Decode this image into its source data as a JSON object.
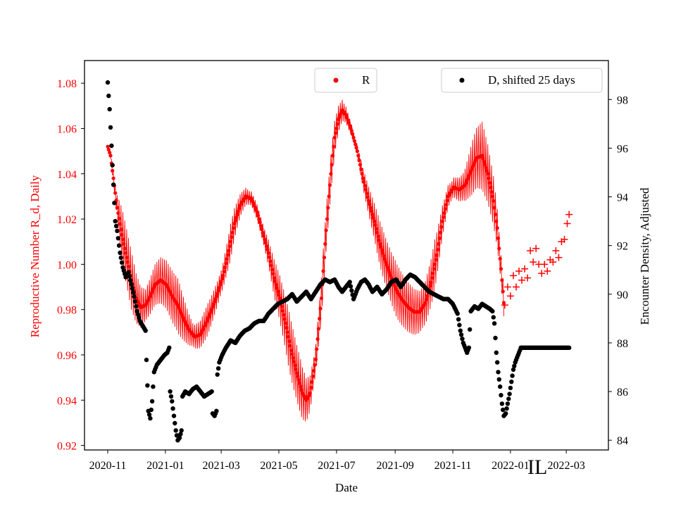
{
  "colors": {
    "r_series": "#ff0000",
    "d_series": "#000000",
    "axes": "#000000"
  },
  "chart_data": {
    "type": "scatter",
    "title": "",
    "xlabel": "Date",
    "ylabel_left": "Reproductive Number R_d, Daily",
    "ylabel_right": "Encounter Density, Adjusted",
    "x_ticks": [
      "2020-11",
      "2021-01",
      "2021-03",
      "2021-05",
      "2021-07",
      "2021-09",
      "2021-11",
      "2022-01",
      "2022-03"
    ],
    "ylim_left": [
      0.918,
      1.09
    ],
    "ylim_right": [
      83.6,
      99.6
    ],
    "left_ticks": [
      "0.92",
      "0.94",
      "0.96",
      "0.98",
      "1.00",
      "1.02",
      "1.04",
      "1.06",
      "1.08"
    ],
    "right_ticks": [
      "84",
      "86",
      "88",
      "90",
      "92",
      "94",
      "96",
      "98"
    ],
    "annotation": "IL",
    "legend": {
      "r_label": "R",
      "d_label": "D, shifted 25 days"
    },
    "series": [
      {
        "name": "R",
        "axis": "left",
        "marker": "dot",
        "center": [
          [
            0,
            1.052
          ],
          [
            3,
            1.048
          ],
          [
            6,
            1.038
          ],
          [
            10,
            1.025
          ],
          [
            15,
            1.013
          ],
          [
            20,
            1.003
          ],
          [
            25,
            0.993
          ],
          [
            30,
            0.985
          ],
          [
            35,
            0.981
          ],
          [
            40,
            0.982
          ],
          [
            45,
            0.986
          ],
          [
            50,
            0.991
          ],
          [
            56,
            0.993
          ],
          [
            62,
            0.991
          ],
          [
            68,
            0.986
          ],
          [
            74,
            0.982
          ],
          [
            80,
            0.976
          ],
          [
            86,
            0.971
          ],
          [
            92,
            0.968
          ],
          [
            98,
            0.969
          ],
          [
            104,
            0.974
          ],
          [
            110,
            0.98
          ],
          [
            116,
            0.987
          ],
          [
            122,
            0.995
          ],
          [
            128,
            1.006
          ],
          [
            134,
            1.018
          ],
          [
            140,
            1.026
          ],
          [
            146,
            1.03
          ],
          [
            152,
            1.029
          ],
          [
            158,
            1.023
          ],
          [
            164,
            1.014
          ],
          [
            170,
            1.005
          ],
          [
            176,
            0.994
          ],
          [
            182,
            0.985
          ],
          [
            188,
            0.974
          ],
          [
            194,
            0.962
          ],
          [
            200,
            0.952
          ],
          [
            206,
            0.943
          ],
          [
            210,
            0.94
          ],
          [
            214,
            0.943
          ],
          [
            220,
            0.958
          ],
          [
            226,
            0.985
          ],
          [
            231,
            1.015
          ],
          [
            236,
            1.04
          ],
          [
            240,
            1.056
          ],
          [
            244,
            1.064
          ],
          [
            248,
            1.068
          ],
          [
            252,
            1.066
          ],
          [
            258,
            1.059
          ],
          [
            264,
            1.05
          ],
          [
            270,
            1.038
          ],
          [
            276,
            1.028
          ],
          [
            282,
            1.019
          ],
          [
            288,
            1.009
          ],
          [
            294,
            1.001
          ],
          [
            300,
            0.994
          ],
          [
            306,
            0.988
          ],
          [
            312,
            0.984
          ],
          [
            318,
            0.981
          ],
          [
            324,
            0.979
          ],
          [
            330,
            0.979
          ],
          [
            336,
            0.983
          ],
          [
            342,
            0.992
          ],
          [
            348,
            1.004
          ],
          [
            354,
            1.019
          ],
          [
            360,
            1.03
          ],
          [
            366,
            1.034
          ],
          [
            372,
            1.033
          ],
          [
            378,
            1.035
          ],
          [
            384,
            1.041
          ],
          [
            390,
            1.047
          ],
          [
            396,
            1.048
          ],
          [
            402,
            1.04
          ],
          [
            408,
            1.028
          ],
          [
            412,
            1.016
          ],
          [
            416,
            0.998
          ],
          [
            419,
            0.983
          ]
        ],
        "amplitude": [
          [
            0,
            0.0
          ],
          [
            8,
            0.003
          ],
          [
            15,
            0.012
          ],
          [
            25,
            0.013
          ],
          [
            40,
            0.007
          ],
          [
            55,
            0.01
          ],
          [
            75,
            0.012
          ],
          [
            90,
            0.005
          ],
          [
            105,
            0.007
          ],
          [
            120,
            0.005
          ],
          [
            130,
            0.008
          ],
          [
            140,
            0.005
          ],
          [
            150,
            0.003
          ],
          [
            165,
            0.004
          ],
          [
            178,
            0.009
          ],
          [
            192,
            0.013
          ],
          [
            205,
            0.012
          ],
          [
            218,
            0.006
          ],
          [
            228,
            0.01
          ],
          [
            238,
            0.008
          ],
          [
            250,
            0.004
          ],
          [
            262,
            0.002
          ],
          [
            275,
            0.006
          ],
          [
            288,
            0.01
          ],
          [
            305,
            0.012
          ],
          [
            318,
            0.011
          ],
          [
            332,
            0.009
          ],
          [
            346,
            0.011
          ],
          [
            356,
            0.006
          ],
          [
            364,
            0.004
          ],
          [
            376,
            0.006
          ],
          [
            386,
            0.012
          ],
          [
            396,
            0.015
          ],
          [
            408,
            0.011
          ],
          [
            416,
            0.006
          ],
          [
            419,
            0.006
          ]
        ],
        "plus_points": [
          [
            420,
            0.982
          ],
          [
            423,
            0.99
          ],
          [
            426,
            0.986
          ],
          [
            429,
            0.995
          ],
          [
            432,
            0.99
          ],
          [
            435,
            0.997
          ],
          [
            438,
            0.993
          ],
          [
            441,
            0.998
          ],
          [
            444,
            0.994
          ],
          [
            447,
            1.006
          ],
          [
            450,
            1.001
          ],
          [
            453,
            1.007
          ],
          [
            456,
            1.0
          ],
          [
            459,
            0.996
          ],
          [
            462,
            1.0
          ],
          [
            465,
            0.997
          ],
          [
            468,
            1.002
          ],
          [
            471,
            1.001
          ],
          [
            474,
            1.006
          ],
          [
            477,
            1.003
          ],
          [
            480,
            1.01
          ],
          [
            483,
            1.011
          ],
          [
            486,
            1.018
          ],
          [
            488,
            1.022
          ]
        ]
      },
      {
        "name": "D, shifted 25 days",
        "axis": "right",
        "marker": "dot",
        "segments": [
          [
            [
              0,
              98.7
            ],
            [
              2,
              97.6
            ],
            [
              4,
              96.1
            ],
            [
              6,
              94.5
            ],
            [
              8,
              93.0
            ],
            [
              10,
              92.6
            ],
            [
              13,
              91.7
            ],
            [
              16,
              91.1
            ],
            [
              19,
              90.7
            ],
            [
              22,
              90.9
            ],
            [
              25,
              90.4
            ],
            [
              28,
              89.9
            ],
            [
              31,
              89.3
            ],
            [
              34,
              88.9
            ],
            [
              37,
              88.7
            ],
            [
              40,
              88.5
            ]
          ],
          [
            [
              41,
              87.3
            ],
            [
              43,
              85.2
            ],
            [
              45,
              84.9
            ],
            [
              47,
              85.6
            ],
            [
              49,
              86.8
            ],
            [
              52,
              87.1
            ],
            [
              56,
              87.3
            ],
            [
              60,
              87.5
            ],
            [
              63,
              87.6
            ],
            [
              65,
              87.8
            ]
          ],
          [
            [
              66,
              86.0
            ],
            [
              68,
              85.6
            ],
            [
              70,
              85.0
            ],
            [
              72,
              84.4
            ],
            [
              74,
              84.0
            ],
            [
              76,
              84.1
            ],
            [
              78,
              84.4
            ]
          ],
          [
            [
              79,
              85.8
            ],
            [
              82,
              86.0
            ],
            [
              86,
              85.9
            ],
            [
              90,
              86.1
            ],
            [
              94,
              86.2
            ],
            [
              98,
              86.0
            ],
            [
              102,
              85.8
            ],
            [
              106,
              85.9
            ],
            [
              110,
              86.0
            ]
          ],
          [
            [
              111,
              85.1
            ],
            [
              113,
              85.0
            ],
            [
              115,
              85.2
            ]
          ],
          [
            [
              116,
              86.7
            ],
            [
              118,
              87.2
            ],
            [
              121,
              87.5
            ],
            [
              125,
              87.8
            ],
            [
              130,
              88.1
            ],
            [
              135,
              88.0
            ],
            [
              140,
              88.3
            ],
            [
              145,
              88.5
            ],
            [
              150,
              88.6
            ],
            [
              155,
              88.8
            ],
            [
              160,
              88.9
            ],
            [
              165,
              88.9
            ],
            [
              170,
              89.2
            ],
            [
              175,
              89.4
            ],
            [
              180,
              89.6
            ],
            [
              185,
              89.7
            ],
            [
              190,
              89.8
            ],
            [
              195,
              90.0
            ],
            [
              200,
              89.7
            ],
            [
              205,
              89.9
            ],
            [
              210,
              90.1
            ],
            [
              215,
              89.8
            ],
            [
              220,
              90.1
            ],
            [
              225,
              90.4
            ],
            [
              230,
              90.6
            ],
            [
              235,
              90.5
            ],
            [
              240,
              90.6
            ],
            [
              244,
              90.3
            ],
            [
              248,
              90.1
            ],
            [
              252,
              90.3
            ],
            [
              256,
              90.5
            ],
            [
              260,
              89.8
            ],
            [
              264,
              90.2
            ],
            [
              268,
              90.5
            ],
            [
              272,
              90.6
            ],
            [
              276,
              90.4
            ],
            [
              280,
              90.1
            ],
            [
              285,
              90.3
            ],
            [
              290,
              90.0
            ],
            [
              295,
              90.2
            ],
            [
              300,
              90.5
            ],
            [
              305,
              90.6
            ],
            [
              310,
              90.3
            ],
            [
              315,
              90.6
            ],
            [
              320,
              90.8
            ],
            [
              325,
              90.7
            ],
            [
              330,
              90.5
            ],
            [
              335,
              90.3
            ],
            [
              340,
              90.1
            ],
            [
              345,
              90.0
            ],
            [
              350,
              89.9
            ],
            [
              355,
              89.8
            ],
            [
              360,
              89.8
            ],
            [
              365,
              89.6
            ],
            [
              370,
              89.2
            ],
            [
              373,
              88.5
            ],
            [
              376,
              88.0
            ],
            [
              378,
              87.8
            ],
            [
              380,
              87.6
            ],
            [
              382,
              87.8
            ],
            [
              384,
              89.3
            ],
            [
              388,
              89.5
            ],
            [
              392,
              89.4
            ],
            [
              396,
              89.6
            ],
            [
              400,
              89.5
            ],
            [
              404,
              89.4
            ],
            [
              407,
              89.3
            ],
            [
              409,
              88.8
            ],
            [
              411,
              87.6
            ],
            [
              413,
              86.8
            ],
            [
              415,
              86.2
            ],
            [
              417,
              85.5
            ],
            [
              419,
              85.0
            ],
            [
              421,
              85.1
            ],
            [
              423,
              85.5
            ],
            [
              425,
              85.9
            ],
            [
              427,
              86.4
            ],
            [
              429,
              86.9
            ],
            [
              431,
              87.2
            ],
            [
              433,
              87.4
            ],
            [
              435,
              87.6
            ],
            [
              437,
              87.8
            ],
            [
              441,
              87.8
            ],
            [
              447,
              87.8
            ],
            [
              453,
              87.8
            ],
            [
              459,
              87.8
            ],
            [
              465,
              87.8
            ],
            [
              471,
              87.8
            ],
            [
              477,
              87.8
            ],
            [
              483,
              87.8
            ],
            [
              488,
              87.8
            ]
          ]
        ]
      }
    ]
  }
}
